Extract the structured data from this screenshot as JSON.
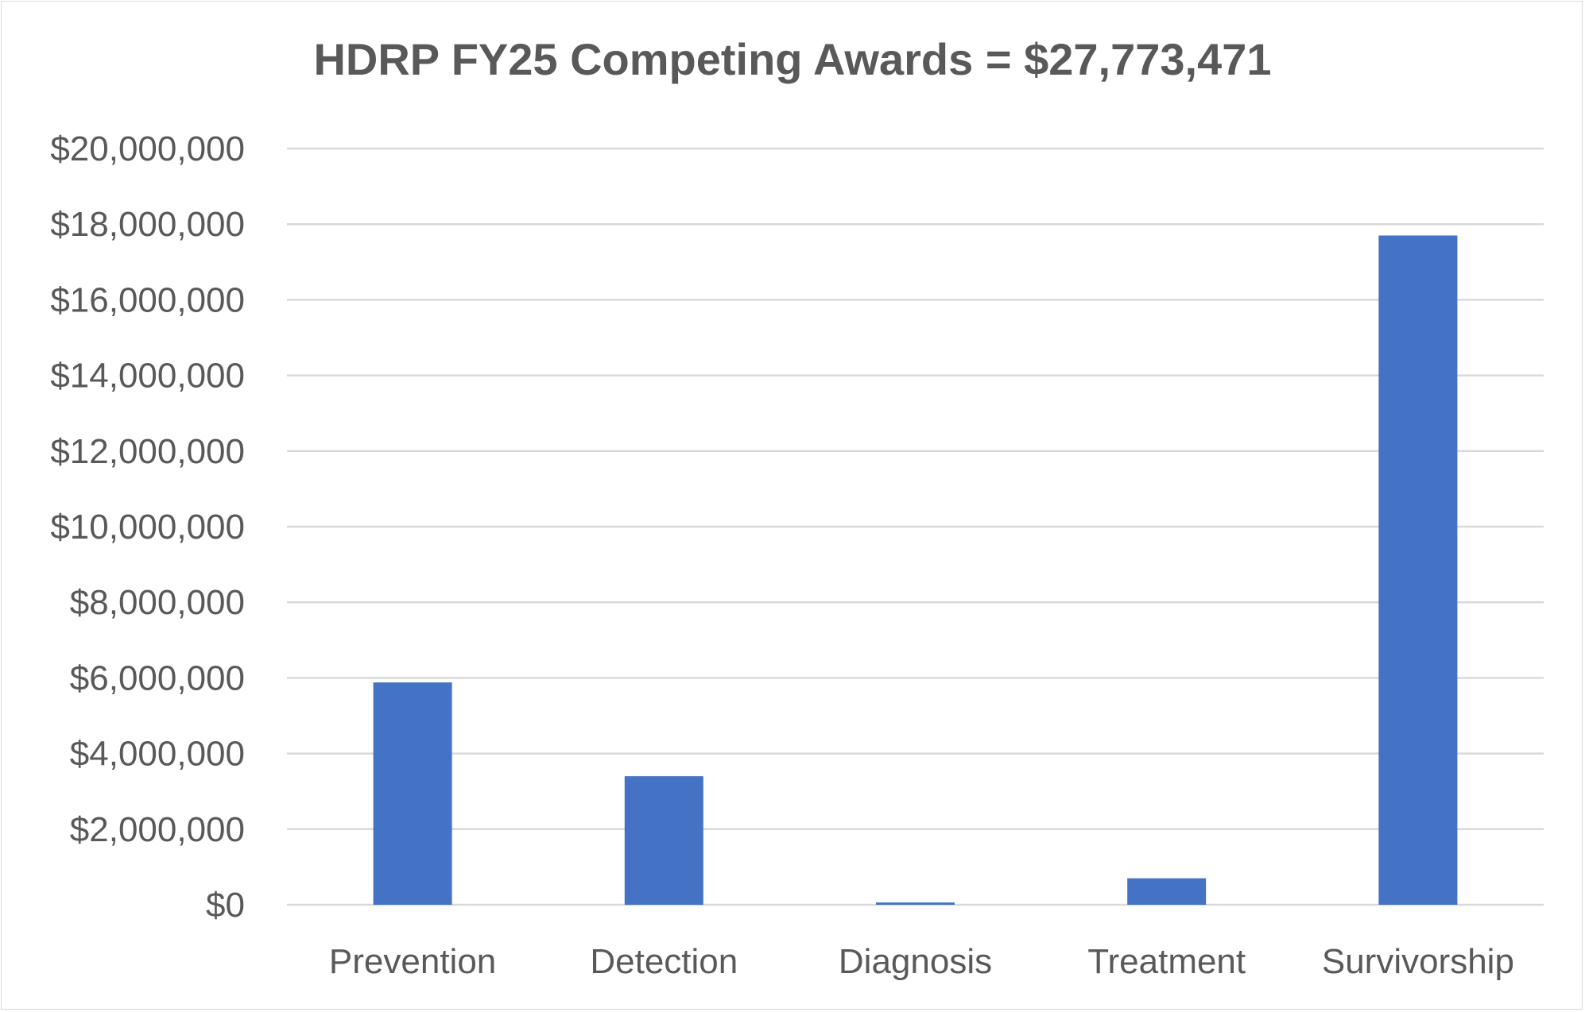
{
  "chart_data": {
    "type": "bar",
    "title": "HDRP FY25 Competing Awards = $27,773,471",
    "categories": [
      "Prevention",
      "Detection",
      "Diagnosis",
      "Treatment",
      "Survivorship"
    ],
    "values": [
      5880000,
      3400000,
      60000,
      700000,
      17700000
    ],
    "ylim": [
      0,
      20000000
    ],
    "yticks": [
      0,
      2000000,
      4000000,
      6000000,
      8000000,
      10000000,
      12000000,
      14000000,
      16000000,
      18000000,
      20000000
    ],
    "ytick_labels": [
      "$0",
      "$2,000,000",
      "$4,000,000",
      "$6,000,000",
      "$8,000,000",
      "$10,000,000",
      "$12,000,000",
      "$14,000,000",
      "$16,000,000",
      "$18,000,000",
      "$20,000,000"
    ],
    "xlabel": "",
    "ylabel": "",
    "grid": true,
    "legend": "none",
    "colors": {
      "bar": "#4472C4",
      "grid": "#d9d9d9",
      "text": "#595959"
    }
  }
}
